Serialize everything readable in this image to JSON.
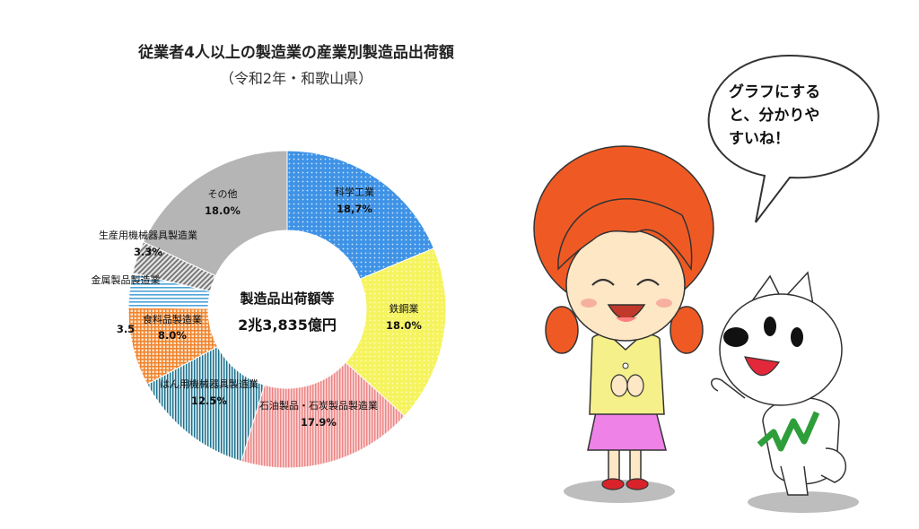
{
  "chart_data": {
    "type": "pie",
    "title": "従業者4人以上の製造業の産業別製造品出荷額",
    "subtitle": "（令和2年・和歌山県）",
    "center_label": "製造品出荷額等",
    "center_value": "2兆3,835億円",
    "slices": [
      {
        "name": "科学工業",
        "value": 18.7,
        "value_label": "18,7%",
        "color": "#3f93e6",
        "pattern": "dots"
      },
      {
        "name": "鉄鋼業",
        "value": 18.0,
        "value_label": "18.0%",
        "color": "#f2f04e",
        "pattern": "dots"
      },
      {
        "name": "石油製品・石炭製品製造業",
        "value": 17.9,
        "value_label": "17.9%",
        "color": "#f29b9b",
        "pattern": "vlines"
      },
      {
        "name": "はん用機械器具製造業",
        "value": 12.5,
        "value_label": "12.5%",
        "color": "#1f6f8b",
        "pattern": "vlines"
      },
      {
        "name": "食料品製造業",
        "value": 8.0,
        "value_label": "8.0%",
        "color": "#f0832d",
        "pattern": "grid"
      },
      {
        "name": "金属製品製造業",
        "value": 3.5,
        "value_label": "3.5",
        "color": "#4da3d9",
        "pattern": "hlines"
      },
      {
        "name": "生産用機械器具製造業",
        "value": 3.3,
        "value_label": "3.3%",
        "color": "#8a8a8a",
        "pattern": "diag"
      },
      {
        "name": "その他",
        "value": 18.0,
        "value_label": "18.0%",
        "color": "#b5b5b5",
        "pattern": "solid"
      }
    ]
  },
  "speech_bubble": {
    "lines": [
      "グラフにする",
      "と、分かりや",
      "すいね！"
    ]
  }
}
